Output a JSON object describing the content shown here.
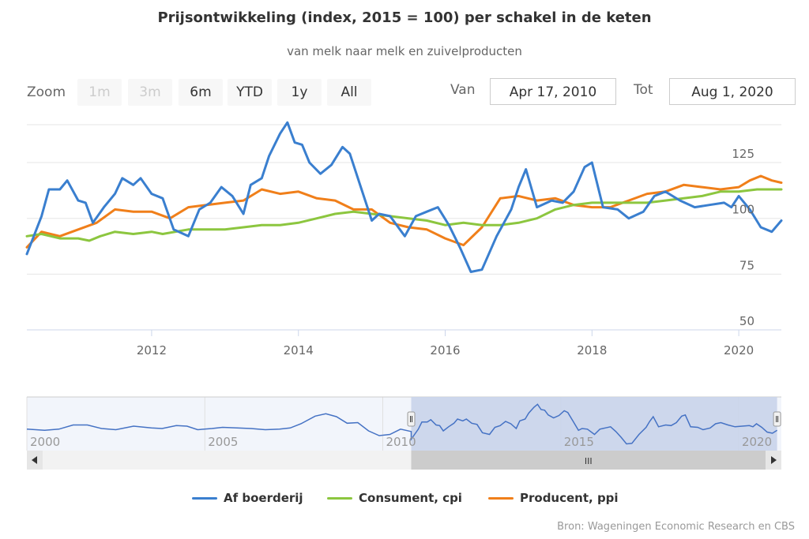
{
  "title": "Prijsontwikkeling (index, 2015 = 100) per schakel in de keten",
  "subtitle": "van melk naar melk en zuivelproducten",
  "range_selector": {
    "zoom_label": "Zoom",
    "buttons": [
      {
        "label": "1m",
        "enabled": false
      },
      {
        "label": "3m",
        "enabled": false
      },
      {
        "label": "6m",
        "enabled": true
      },
      {
        "label": "YTD",
        "enabled": true
      },
      {
        "label": "1y",
        "enabled": true
      },
      {
        "label": "All",
        "enabled": true
      }
    ],
    "from_label": "Van",
    "from_value": "Apr 17, 2010",
    "to_label": "Tot",
    "to_value": "Aug 1, 2020"
  },
  "navigator": {
    "x_ticks": [
      "2000",
      "2005",
      "2010",
      "2015",
      "2020"
    ],
    "scrollbar_grip": "III",
    "selected_from": 2010.3,
    "selected_to": 2020.58,
    "full_from": 1999.5,
    "full_to": 2020.7
  },
  "credits": "Bron: Wageningen Economic Research en CBS",
  "colors": {
    "blue": "#3a7fcf",
    "green": "#8cc63f",
    "orange": "#f07f1a",
    "grid": "#e6e6e6",
    "axis": "#ccd6eb",
    "navigator_mask": "#c9d4ea",
    "navigator_line": "#4572c4"
  },
  "chart_data": {
    "type": "line",
    "title": "Prijsontwikkeling (index, 2015 = 100) per schakel in de keten",
    "subtitle": "van melk naar melk en zuivelproducten",
    "x_range": [
      2010.3,
      2020.58
    ],
    "x_ticks": [
      "2012",
      "2014",
      "2016",
      "2018",
      "2020"
    ],
    "y_range": [
      50,
      142
    ],
    "y_ticks": [
      50,
      75,
      100,
      125
    ],
    "grid": true,
    "legend_position": "bottom",
    "series": [
      {
        "name": "Af boerderij",
        "color": "#3a7fcf",
        "x": [
          2010.3,
          2010.5,
          2010.6,
          2010.75,
          2010.85,
          2011.0,
          2011.1,
          2011.2,
          2011.35,
          2011.5,
          2011.6,
          2011.75,
          2011.85,
          2012.0,
          2012.15,
          2012.3,
          2012.5,
          2012.65,
          2012.8,
          2012.95,
          2013.1,
          2013.25,
          2013.35,
          2013.5,
          2013.6,
          2013.75,
          2013.85,
          2013.95,
          2014.05,
          2014.15,
          2014.3,
          2014.45,
          2014.6,
          2014.7,
          2014.85,
          2015.0,
          2015.1,
          2015.25,
          2015.45,
          2015.6,
          2015.75,
          2015.9,
          2016.05,
          2016.2,
          2016.35,
          2016.5,
          2016.7,
          2016.9,
          2017.0,
          2017.1,
          2017.25,
          2017.45,
          2017.6,
          2017.75,
          2017.9,
          2018.0,
          2018.15,
          2018.35,
          2018.5,
          2018.7,
          2018.85,
          2019.0,
          2019.2,
          2019.4,
          2019.6,
          2019.8,
          2019.9,
          2020.0,
          2020.15,
          2020.3,
          2020.45,
          2020.58
        ],
        "y": [
          84,
          101,
          113,
          113,
          117,
          108,
          107,
          98,
          105,
          111,
          118,
          115,
          118,
          111,
          109,
          95,
          92,
          104,
          107,
          114,
          110,
          102,
          115,
          118,
          128,
          138,
          143,
          134,
          133,
          125,
          120,
          124,
          132,
          129,
          114,
          99,
          102,
          101,
          92,
          101,
          103,
          105,
          97,
          87,
          76,
          77,
          92,
          104,
          114,
          122,
          105,
          108,
          107,
          112,
          123,
          125,
          105,
          104,
          100,
          103,
          110,
          112,
          108,
          105,
          106,
          107,
          105,
          110,
          104,
          96,
          94,
          99
        ]
      },
      {
        "name": "Consument, cpi",
        "color": "#8cc63f",
        "x": [
          2010.3,
          2010.5,
          2010.75,
          2011.0,
          2011.15,
          2011.3,
          2011.5,
          2011.75,
          2012.0,
          2012.15,
          2012.5,
          2012.75,
          2013.0,
          2013.25,
          2013.5,
          2013.75,
          2014.0,
          2014.25,
          2014.5,
          2014.75,
          2015.0,
          2015.25,
          2015.5,
          2015.75,
          2016.0,
          2016.25,
          2016.5,
          2016.75,
          2017.0,
          2017.25,
          2017.5,
          2017.75,
          2018.0,
          2018.25,
          2018.5,
          2018.75,
          2019.0,
          2019.25,
          2019.5,
          2019.75,
          2020.0,
          2020.25,
          2020.58
        ],
        "y": [
          92,
          93,
          91,
          91,
          90,
          92,
          94,
          93,
          94,
          93,
          95,
          95,
          95,
          96,
          97,
          97,
          98,
          100,
          102,
          103,
          102,
          101,
          100,
          99,
          97,
          98,
          97,
          97,
          98,
          100,
          104,
          106,
          107,
          107,
          107,
          107,
          108,
          109,
          110,
          112,
          112,
          113,
          113
        ]
      },
      {
        "name": "Producent, ppi",
        "color": "#f07f1a",
        "x": [
          2010.3,
          2010.5,
          2010.75,
          2011.0,
          2011.25,
          2011.5,
          2011.75,
          2012.0,
          2012.25,
          2012.5,
          2012.75,
          2013.0,
          2013.25,
          2013.5,
          2013.75,
          2014.0,
          2014.25,
          2014.5,
          2014.75,
          2015.0,
          2015.25,
          2015.5,
          2015.75,
          2016.0,
          2016.25,
          2016.5,
          2016.75,
          2017.0,
          2017.25,
          2017.5,
          2017.75,
          2018.0,
          2018.25,
          2018.5,
          2018.75,
          2019.0,
          2019.25,
          2019.5,
          2019.75,
          2020.0,
          2020.15,
          2020.3,
          2020.45,
          2020.58
        ],
        "y": [
          87,
          94,
          92,
          95,
          98,
          104,
          103,
          103,
          100,
          105,
          106,
          107,
          108,
          113,
          111,
          112,
          109,
          108,
          104,
          104,
          98,
          96,
          95,
          91,
          88,
          96,
          109,
          110,
          108,
          109,
          106,
          105,
          105,
          108,
          111,
          112,
          115,
          114,
          113,
          114,
          117,
          119,
          117,
          116
        ]
      }
    ]
  }
}
